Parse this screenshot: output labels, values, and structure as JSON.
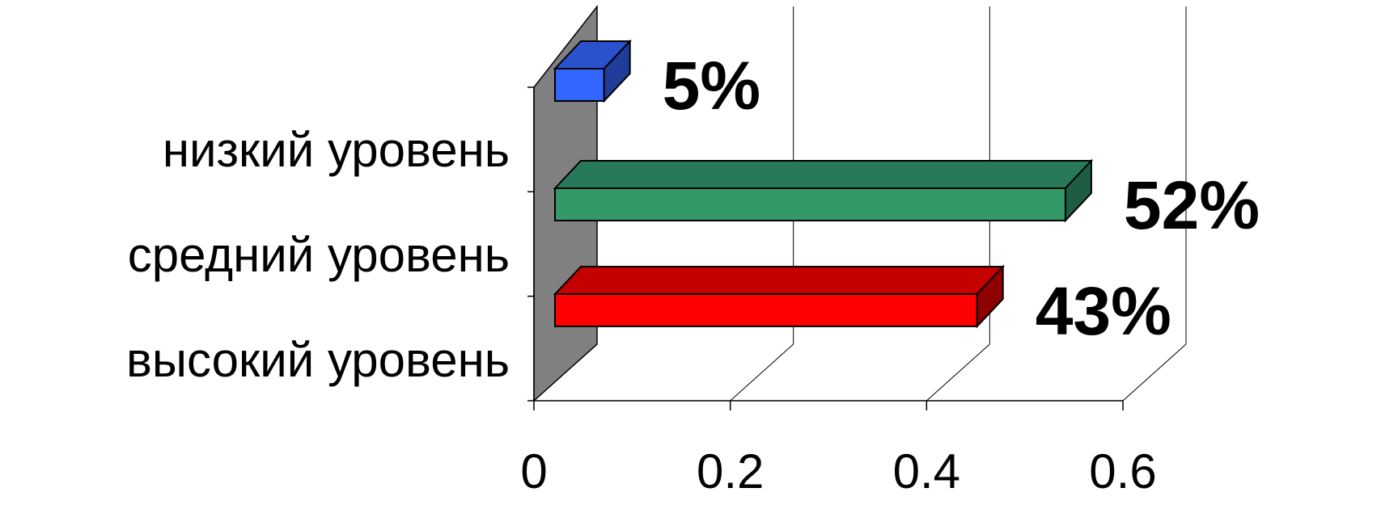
{
  "chart_data": {
    "type": "bar",
    "orientation": "horizontal",
    "three_d": true,
    "categories": [
      "низкий уровень",
      "средний уровень",
      "высокий уровень"
    ],
    "values": [
      0.05,
      0.52,
      0.43
    ],
    "data_labels": [
      "5%",
      "52%",
      "43%"
    ],
    "bar_colors": [
      "#3366ff",
      "#339966",
      "#ff0000"
    ],
    "bar_top_colors": [
      "#2a52cc",
      "#28795a",
      "#c40000"
    ],
    "bar_side_colors": [
      "#1f3d99",
      "#1f5c44",
      "#8f0000"
    ],
    "xlim": [
      0,
      0.6
    ],
    "x_ticks": [
      "0",
      "0.2",
      "0.4",
      "0.6"
    ],
    "x_tick_values": [
      0,
      0.2,
      0.4,
      0.6
    ],
    "grid": true,
    "wall_color": "#808080",
    "legend": false
  }
}
